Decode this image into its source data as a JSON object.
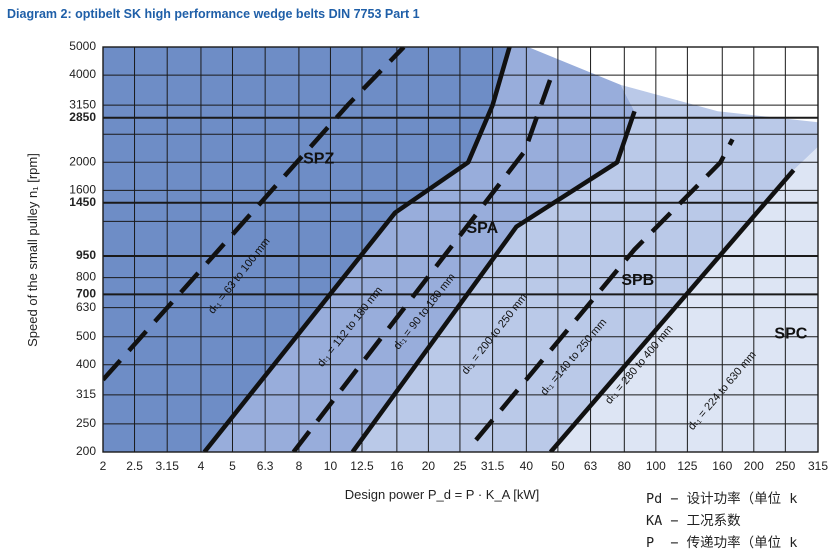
{
  "chart_data": {
    "type": "line",
    "title": "Diagram 2: optibelt SK high performance wedge belts DIN 7753 Part 1",
    "xlabel": "Design power P_d = P · K_A [kW]",
    "ylabel": "Speed of the small pulley n₁ [rpm]",
    "x_scale": "log",
    "y_scale": "log",
    "xlim": [
      2,
      315
    ],
    "ylim": [
      200,
      5000
    ],
    "x_ticks": [
      {
        "v": 2,
        "label": "2"
      },
      {
        "v": 2.5,
        "label": "2.5"
      },
      {
        "v": 3.15,
        "label": "3.15"
      },
      {
        "v": 4,
        "label": "4"
      },
      {
        "v": 5,
        "label": "5"
      },
      {
        "v": 6.3,
        "label": "6.3"
      },
      {
        "v": 8,
        "label": "8"
      },
      {
        "v": 10,
        "label": "10"
      },
      {
        "v": 12.5,
        "label": "12.5"
      },
      {
        "v": 16,
        "label": "16"
      },
      {
        "v": 20,
        "label": "20"
      },
      {
        "v": 25,
        "label": "25"
      },
      {
        "v": 31.5,
        "label": "31.5"
      },
      {
        "v": 40,
        "label": "40"
      },
      {
        "v": 50,
        "label": "50"
      },
      {
        "v": 63,
        "label": "63"
      },
      {
        "v": 80,
        "label": "80"
      },
      {
        "v": 100,
        "label": "100"
      },
      {
        "v": 125,
        "label": "125"
      },
      {
        "v": 160,
        "label": "160"
      },
      {
        "v": 200,
        "label": "200"
      },
      {
        "v": 250,
        "label": "250"
      },
      {
        "v": 315,
        "label": "315"
      }
    ],
    "y_ticks": [
      {
        "v": 200,
        "label": "200",
        "bold": false
      },
      {
        "v": 250,
        "label": "250",
        "bold": false
      },
      {
        "v": 315,
        "label": "315",
        "bold": false
      },
      {
        "v": 400,
        "label": "400",
        "bold": false
      },
      {
        "v": 500,
        "label": "500",
        "bold": false
      },
      {
        "v": 630,
        "label": "630",
        "bold": false
      },
      {
        "v": 700,
        "label": "700",
        "bold": true
      },
      {
        "v": 800,
        "label": "800",
        "bold": false
      },
      {
        "v": 950,
        "label": "950",
        "bold": true
      },
      {
        "v": 1250,
        "label": "",
        "bold": false
      },
      {
        "v": 1450,
        "label": "1450",
        "bold": true
      },
      {
        "v": 1600,
        "label": "1600",
        "bold": false
      },
      {
        "v": 2000,
        "label": "2000",
        "bold": false
      },
      {
        "v": 2500,
        "label": "",
        "bold": false
      },
      {
        "v": 2850,
        "label": "2850",
        "bold": true
      },
      {
        "v": 3150,
        "label": "3150",
        "bold": false
      },
      {
        "v": 4000,
        "label": "4000",
        "bold": false
      },
      {
        "v": 5000,
        "label": "5000",
        "bold": false
      }
    ],
    "grid": true,
    "regions": [
      {
        "name": "SPZ",
        "color": "#6e8dc6",
        "boundary": [
          [
            2,
            5000
          ],
          [
            2,
            200
          ],
          [
            4.1,
            200
          ],
          [
            15.8,
            1340
          ],
          [
            26.5,
            2000
          ],
          [
            31.5,
            3150
          ],
          [
            35.5,
            5000
          ]
        ]
      },
      {
        "name": "SPA",
        "color": "#98addb",
        "boundary": [
          [
            35.5,
            5000
          ],
          [
            31.5,
            3150
          ],
          [
            26.5,
            2000
          ],
          [
            15.8,
            1340
          ],
          [
            4.1,
            200
          ],
          [
            11.7,
            200
          ],
          [
            37.3,
            1200
          ],
          [
            76,
            2000
          ],
          [
            86,
            3000
          ],
          [
            78,
            3700
          ],
          [
            40.5,
            5000
          ]
        ]
      },
      {
        "name": "SPB",
        "color": "#bac9e8",
        "boundary": [
          [
            78,
            3700
          ],
          [
            86,
            3000
          ],
          [
            76,
            2000
          ],
          [
            37.3,
            1200
          ],
          [
            11.7,
            200
          ],
          [
            47.5,
            200
          ],
          [
            265,
            1880
          ],
          [
            315,
            2260
          ],
          [
            315,
            2750
          ],
          [
            155,
            3000
          ]
        ]
      },
      {
        "name": "SPC",
        "color": "#dde5f4",
        "boundary": [
          [
            315,
            2260
          ],
          [
            265,
            1880
          ],
          [
            47.5,
            200
          ],
          [
            315,
            200
          ]
        ]
      }
    ],
    "series": [
      {
        "style": "dashed",
        "points": [
          [
            2,
            355
          ],
          [
            11.3,
            3150
          ],
          [
            16.8,
            5000
          ]
        ]
      },
      {
        "style": "solid",
        "points": [
          [
            4.1,
            200
          ],
          [
            15.8,
            1340
          ],
          [
            26.5,
            2000
          ],
          [
            31.5,
            3150
          ],
          [
            35.5,
            5000
          ]
        ]
      },
      {
        "style": "dashed",
        "points": [
          [
            7.7,
            200
          ],
          [
            39.5,
            2180
          ],
          [
            47.5,
            3900
          ]
        ]
      },
      {
        "style": "solid",
        "points": [
          [
            11.7,
            200
          ],
          [
            37.3,
            1200
          ],
          [
            76,
            2000
          ],
          [
            86,
            3000
          ]
        ]
      },
      {
        "style": "dashed",
        "points": [
          [
            28,
            220
          ],
          [
            86,
            1000
          ],
          [
            158,
            2000
          ],
          [
            172,
            2400
          ]
        ]
      },
      {
        "style": "solid",
        "points": [
          [
            47.5,
            200
          ],
          [
            265,
            1880
          ]
        ]
      }
    ],
    "region_labels": [
      {
        "text": "SPZ",
        "x": 9.2,
        "y": 2050
      },
      {
        "text": "SPA",
        "x": 29.3,
        "y": 1180
      },
      {
        "text": "SPB",
        "x": 88,
        "y": 780
      },
      {
        "text": "SPC",
        "x": 260,
        "y": 510
      }
    ],
    "line_annotations": [
      {
        "text": "dₜ₁ = 63 to 100 mm",
        "x": 5.25,
        "y": 810,
        "angle": -52
      },
      {
        "text": "dₜ₁ = 112 to 180 mm",
        "x": 11.5,
        "y": 540,
        "angle": -52
      },
      {
        "text": "dₜ₁ = 90 to 180 mm",
        "x": 19.5,
        "y": 610,
        "angle": -52
      },
      {
        "text": "dₜ₁ = 200 to 250 mm",
        "x": 32,
        "y": 510,
        "angle": -52
      },
      {
        "text": "dₜ₁ =140 to 250 mm",
        "x": 56,
        "y": 425,
        "angle": -50
      },
      {
        "text": "dₜ₁ = 280 to 400 mm",
        "x": 89,
        "y": 400,
        "angle": -50
      },
      {
        "text": "dₜ₁ = 224 to 630 mm",
        "x": 160,
        "y": 325,
        "angle": -50
      }
    ]
  },
  "legend_text": {
    "line1": "Pd − 设计功率（单位 k",
    "line2": "KA − 工况系数",
    "line3": "P  − 传递功率（单位 k"
  },
  "colors": {
    "title": "#1f5fa8",
    "grid": "#1a1a1a",
    "line": "#111111"
  }
}
